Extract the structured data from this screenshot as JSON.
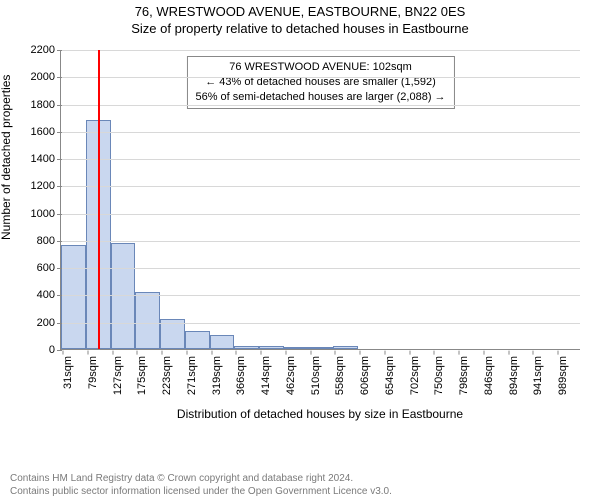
{
  "header": {
    "title": "76, WRESTWOOD AVENUE, EASTBOURNE, BN22 0ES",
    "subtitle": "Size of property relative to detached houses in Eastbourne"
  },
  "chart": {
    "type": "histogram",
    "y_label": "Number of detached properties",
    "x_label": "Distribution of detached houses by size in Eastbourne",
    "ylim": [
      0,
      2200
    ],
    "ytick_step": 200,
    "y_ticks": [
      0,
      200,
      400,
      600,
      800,
      1000,
      1200,
      1400,
      1600,
      1800,
      2000,
      2200
    ],
    "x_tick_labels": [
      "31sqm",
      "79sqm",
      "127sqm",
      "175sqm",
      "223sqm",
      "271sqm",
      "319sqm",
      "366sqm",
      "414sqm",
      "462sqm",
      "510sqm",
      "558sqm",
      "606sqm",
      "654sqm",
      "702sqm",
      "750sqm",
      "798sqm",
      "846sqm",
      "894sqm",
      "941sqm",
      "989sqm"
    ],
    "x_tick_step_sqm": 48,
    "bars": [
      {
        "sqm": 31,
        "count": 760
      },
      {
        "sqm": 79,
        "count": 1680
      },
      {
        "sqm": 127,
        "count": 780
      },
      {
        "sqm": 175,
        "count": 420
      },
      {
        "sqm": 223,
        "count": 220
      },
      {
        "sqm": 271,
        "count": 130
      },
      {
        "sqm": 319,
        "count": 100
      },
      {
        "sqm": 366,
        "count": 20
      },
      {
        "sqm": 414,
        "count": 20
      },
      {
        "sqm": 462,
        "count": 10
      },
      {
        "sqm": 510,
        "count": 10
      },
      {
        "sqm": 558,
        "count": 20
      },
      {
        "sqm": 606,
        "count": 0
      },
      {
        "sqm": 654,
        "count": 0
      },
      {
        "sqm": 702,
        "count": 0
      },
      {
        "sqm": 750,
        "count": 0
      },
      {
        "sqm": 798,
        "count": 0
      },
      {
        "sqm": 846,
        "count": 0
      },
      {
        "sqm": 894,
        "count": 0
      },
      {
        "sqm": 941,
        "count": 0
      },
      {
        "sqm": 989,
        "count": 0
      }
    ],
    "bar_fill": "#c9d7ef",
    "bar_border": "#6a87b8",
    "grid_color": "#d8d8d8",
    "axis_color": "#888888",
    "background_color": "#ffffff",
    "marker": {
      "sqm": 102,
      "color": "#ff0000"
    },
    "info_box": {
      "line1": "76 WRESTWOOD AVENUE: 102sqm",
      "line2": "← 43% of detached houses are smaller (1,592)",
      "line3": "56% of semi-detached houses are larger (2,088) →"
    }
  },
  "attribution": {
    "line1": "Contains HM Land Registry data © Crown copyright and database right 2024.",
    "line2": "Contains public sector information licensed under the Open Government Licence v3.0."
  }
}
